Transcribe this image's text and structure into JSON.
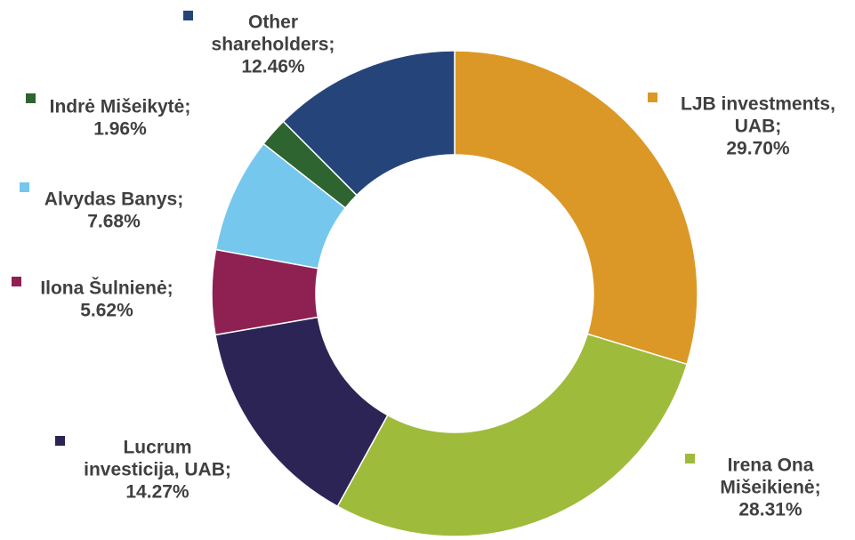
{
  "chart_data": {
    "type": "pie",
    "donut": true,
    "title": "",
    "slices": [
      {
        "label_lines": [
          "LJB investments,",
          "UAB;",
          "29.70%"
        ],
        "name": "LJB investments, UAB",
        "value": 29.7,
        "color": "#DB9826"
      },
      {
        "label_lines": [
          "Irena Ona",
          "Mišeikienė;",
          "28.31%"
        ],
        "name": "Irena Ona Mišeikienė",
        "value": 28.31,
        "color": "#9FBB3B"
      },
      {
        "label_lines": [
          "Lucrum",
          "investicija, UAB;",
          "14.27%"
        ],
        "name": "Lucrum investicija, UAB",
        "value": 14.27,
        "color": "#2D2456"
      },
      {
        "label_lines": [
          "Ilona Šulnienė;",
          "5.62%"
        ],
        "name": "Ilona Šulnienė",
        "value": 5.62,
        "color": "#8E2152"
      },
      {
        "label_lines": [
          "Alvydas Banys;",
          "7.68%"
        ],
        "name": "Alvydas Banys",
        "value": 7.68,
        "color": "#75C7EE"
      },
      {
        "label_lines": [
          "Indrė Mišeikytė;",
          "1.96%"
        ],
        "name": "Indrė Mišeikytė",
        "value": 1.96,
        "color": "#2E6430"
      },
      {
        "label_lines": [
          "Other",
          "shareholders;",
          "12.46%"
        ],
        "name": "Other shareholders",
        "value": 12.46,
        "color": "#25457A"
      }
    ]
  }
}
